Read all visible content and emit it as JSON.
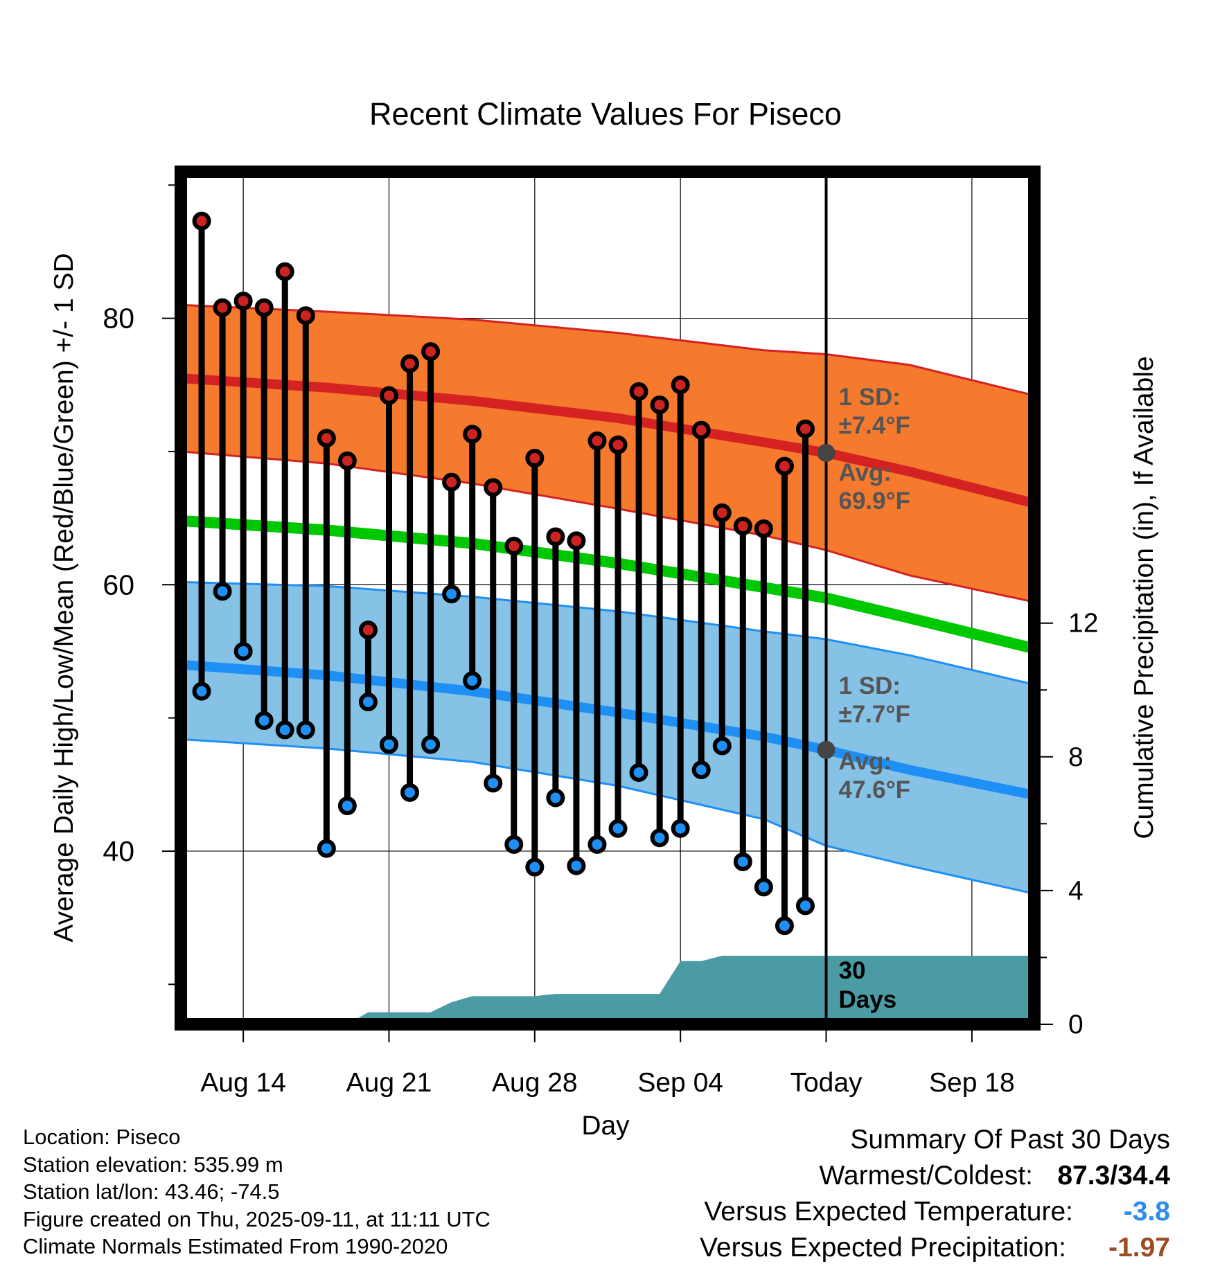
{
  "chart_data": {
    "type": "line",
    "title": "Recent Climate Values For Piseco",
    "xlabel": "Day",
    "ylabel": "Average Daily High/Low/Mean (Red/Blue/Green) +/- 1 SD",
    "ylabel_right": "Cumulative Precipitation (in), If Available",
    "x_ticks": [
      "Aug 14",
      "Aug 21",
      "Aug 28",
      "Sep 04",
      "Today",
      "Sep 18"
    ],
    "y_ticks": [
      40,
      60,
      80
    ],
    "y_right_ticks": [
      0,
      4,
      8,
      12
    ],
    "x_range": [
      "2025-08-11",
      "2025-09-21"
    ],
    "y_range": [
      27,
      91
    ],
    "y_right_range": [
      0,
      25.5
    ],
    "grid": true,
    "today": "2025-09-11",
    "days": [
      "2025-08-12",
      "2025-08-13",
      "2025-08-14",
      "2025-08-15",
      "2025-08-16",
      "2025-08-17",
      "2025-08-18",
      "2025-08-19",
      "2025-08-20",
      "2025-08-21",
      "2025-08-22",
      "2025-08-23",
      "2025-08-24",
      "2025-08-25",
      "2025-08-26",
      "2025-08-27",
      "2025-08-28",
      "2025-08-29",
      "2025-08-30",
      "2025-08-31",
      "2025-09-01",
      "2025-09-02",
      "2025-09-03",
      "2025-09-04",
      "2025-09-05",
      "2025-09-06",
      "2025-09-07",
      "2025-09-08",
      "2025-09-09",
      "2025-09-10"
    ],
    "observed_high": [
      87.3,
      80.8,
      81.3,
      80.8,
      83.5,
      80.2,
      71.0,
      69.3,
      56.6,
      74.2,
      76.6,
      77.5,
      67.7,
      71.3,
      67.3,
      62.9,
      69.5,
      63.6,
      63.3,
      70.8,
      70.5,
      74.5,
      73.5,
      75.0,
      71.6,
      65.4,
      64.4,
      64.2,
      68.9,
      71.7
    ],
    "observed_low": [
      52.0,
      59.5,
      55.0,
      49.8,
      49.1,
      49.1,
      40.2,
      43.4,
      51.2,
      48.0,
      44.4,
      48.0,
      59.3,
      52.8,
      45.1,
      40.5,
      38.8,
      44.0,
      38.9,
      40.5,
      41.7,
      45.9,
      41.0,
      41.7,
      46.1,
      47.9,
      39.2,
      37.3,
      34.4,
      35.9
    ],
    "normal_high": {
      "x": [
        "2025-08-11",
        "2025-08-18",
        "2025-08-25",
        "2025-09-01",
        "2025-09-08",
        "2025-09-11",
        "2025-09-15",
        "2025-09-21"
      ],
      "mean": [
        75.5,
        74.8,
        73.8,
        72.5,
        70.7,
        69.9,
        68.5,
        66.1
      ],
      "upper": [
        81.0,
        80.5,
        79.9,
        78.9,
        77.6,
        77.3,
        76.5,
        74.2
      ],
      "lower": [
        70.0,
        69.1,
        67.6,
        65.7,
        63.7,
        62.6,
        60.7,
        58.7
      ]
    },
    "normal_mean": {
      "x": [
        "2025-08-11",
        "2025-08-18",
        "2025-08-25",
        "2025-09-01",
        "2025-09-08",
        "2025-09-11",
        "2025-09-15",
        "2025-09-21"
      ],
      "mean": [
        64.8,
        64.1,
        63.1,
        61.6,
        59.8,
        59.0,
        57.5,
        55.2
      ]
    },
    "normal_low": {
      "x": [
        "2025-08-11",
        "2025-08-18",
        "2025-08-25",
        "2025-09-01",
        "2025-09-08",
        "2025-09-11",
        "2025-09-15",
        "2025-09-21"
      ],
      "mean": [
        54.0,
        53.2,
        52.0,
        50.4,
        48.6,
        47.6,
        46.1,
        44.2
      ],
      "upper": [
        60.2,
        59.9,
        59.1,
        58.0,
        56.5,
        55.9,
        54.7,
        52.5
      ],
      "lower": [
        48.4,
        47.7,
        46.7,
        44.9,
        42.4,
        40.4,
        38.9,
        36.8
      ]
    },
    "precip_cumulative": {
      "x": [
        "2025-08-19",
        "2025-08-20",
        "2025-08-22",
        "2025-08-23",
        "2025-08-24",
        "2025-08-25",
        "2025-08-26",
        "2025-08-27",
        "2025-08-28",
        "2025-08-29",
        "2025-09-03",
        "2025-09-04",
        "2025-09-05",
        "2025-09-06",
        "2025-09-21"
      ],
      "values": [
        0,
        0.36,
        0.36,
        0.36,
        0.66,
        0.84,
        0.84,
        0.84,
        0.84,
        0.91,
        0.91,
        1.89,
        1.89,
        2.05,
        2.05
      ]
    },
    "annotations": {
      "high_sd_label": "1 SD:",
      "high_sd_value": "±7.4°F",
      "high_avg_label": "Avg:",
      "high_avg_value": "69.9°F",
      "low_sd_label": "1 SD:",
      "low_sd_value": "±7.7°F",
      "low_avg_label": "Avg:",
      "low_avg_value": "47.6°F",
      "window_line1": "30",
      "window_line2": "Days"
    },
    "colors": {
      "high_band": "#f57a2e",
      "high_line": "#d42222",
      "mean_line": "#00c800",
      "low_band": "#86c1e6",
      "low_line": "#1e8ff5",
      "precip_fill": "#4a9ba3",
      "high_marker": "#cc2222",
      "low_marker": "#1e8ff5",
      "avg_marker": "#444444",
      "annotation_text": "#555555"
    }
  },
  "footer": {
    "location": "Location: Piseco",
    "elevation": "Station elevation: 535.99 m",
    "latlon": "Station lat/lon: 43.46; -74.5",
    "created": "Figure created on Thu, 2025-09-11, at 11:11 UTC",
    "normals": "Climate Normals Estimated From 1990-2020"
  },
  "summary": {
    "title": "Summary Of Past 30 Days",
    "warmest_label": "Warmest/Coldest:",
    "warmest_value": "87.3/34.4",
    "temp_label": "Versus Expected Temperature:",
    "temp_value": "-3.8",
    "precip_label": "Versus Expected Precipitation:",
    "precip_value": "-1.97"
  }
}
